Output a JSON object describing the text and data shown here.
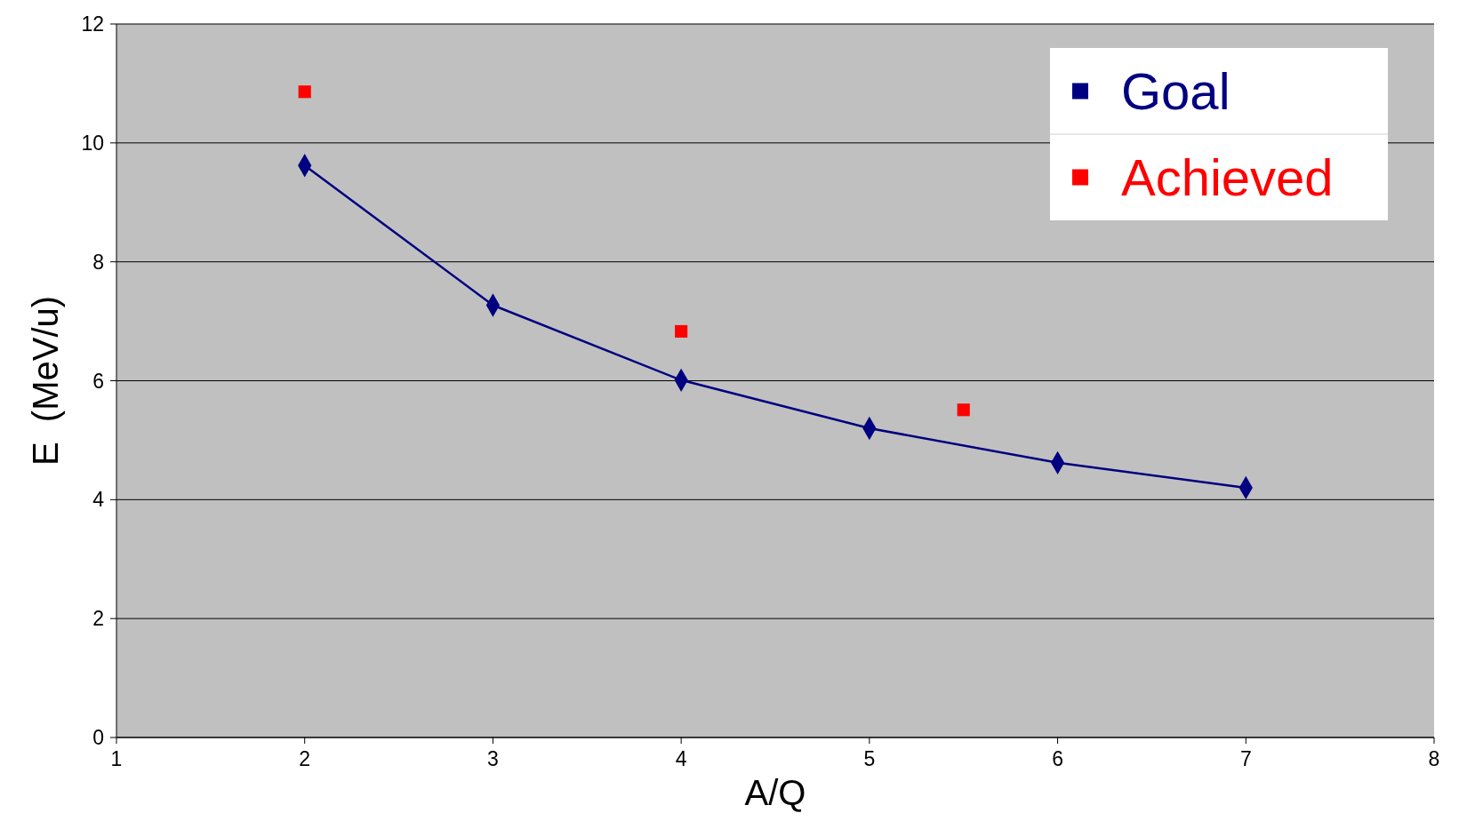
{
  "chart_data": {
    "type": "line",
    "xlabel": "A/Q",
    "ylabel": "E  (MeV/u)",
    "xlim": [
      1,
      8
    ],
    "xticks": [
      1,
      2,
      3,
      4,
      5,
      6,
      7,
      8
    ],
    "ylim": [
      0,
      12
    ],
    "yticks": [
      0,
      2,
      4,
      6,
      8,
      10,
      12
    ],
    "grid": "y",
    "legend": "top right",
    "series": [
      {
        "name": "Goal",
        "color": "#000080",
        "marker": "diamond",
        "x": [
          2,
          3,
          4,
          5,
          6,
          7
        ],
        "values": [
          9.62,
          7.27,
          6.01,
          5.2,
          4.62,
          4.2
        ]
      },
      {
        "name": "Achieved",
        "type": "scatter",
        "color": "#ff0000",
        "marker": "square",
        "x": [
          2,
          4,
          5.5
        ],
        "values": [
          10.86,
          6.83,
          5.51
        ]
      }
    ]
  }
}
